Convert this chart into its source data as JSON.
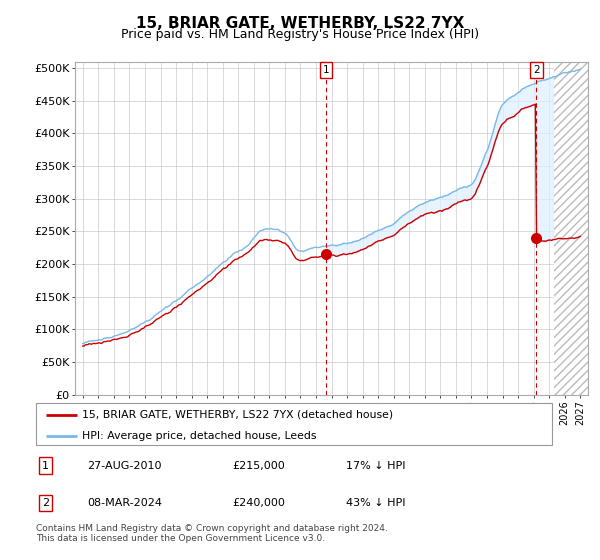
{
  "title": "15, BRIAR GATE, WETHERBY, LS22 7YX",
  "subtitle": "Price paid vs. HM Land Registry's House Price Index (HPI)",
  "title_fontsize": 11,
  "subtitle_fontsize": 9,
  "ylabel_ticks": [
    "£0",
    "£50K",
    "£100K",
    "£150K",
    "£200K",
    "£250K",
    "£300K",
    "£350K",
    "£400K",
    "£450K",
    "£500K"
  ],
  "ytick_values": [
    0,
    50000,
    100000,
    150000,
    200000,
    250000,
    300000,
    350000,
    400000,
    450000,
    500000
  ],
  "ylim": [
    0,
    510000
  ],
  "xlim_start": 1994.5,
  "xlim_end": 2027.5,
  "hpi_color": "#7ab8e8",
  "hpi_fill_color": "#ddeeff",
  "price_color": "#cc0000",
  "annotation_color": "#cc0000",
  "marker1_x": 2010.65,
  "marker1_y": 215000,
  "marker2_x": 2024.18,
  "marker2_y": 240000,
  "legend_label1": "15, BRIAR GATE, WETHERBY, LS22 7YX (detached house)",
  "legend_label2": "HPI: Average price, detached house, Leeds",
  "table_row1": [
    "1",
    "27-AUG-2010",
    "£215,000",
    "17% ↓ HPI"
  ],
  "table_row2": [
    "2",
    "08-MAR-2024",
    "£240,000",
    "43% ↓ HPI"
  ],
  "footnote": "Contains HM Land Registry data © Crown copyright and database right 2024.\nThis data is licensed under the Open Government Licence v3.0.",
  "background_color": "#ffffff",
  "grid_color": "#cccccc"
}
